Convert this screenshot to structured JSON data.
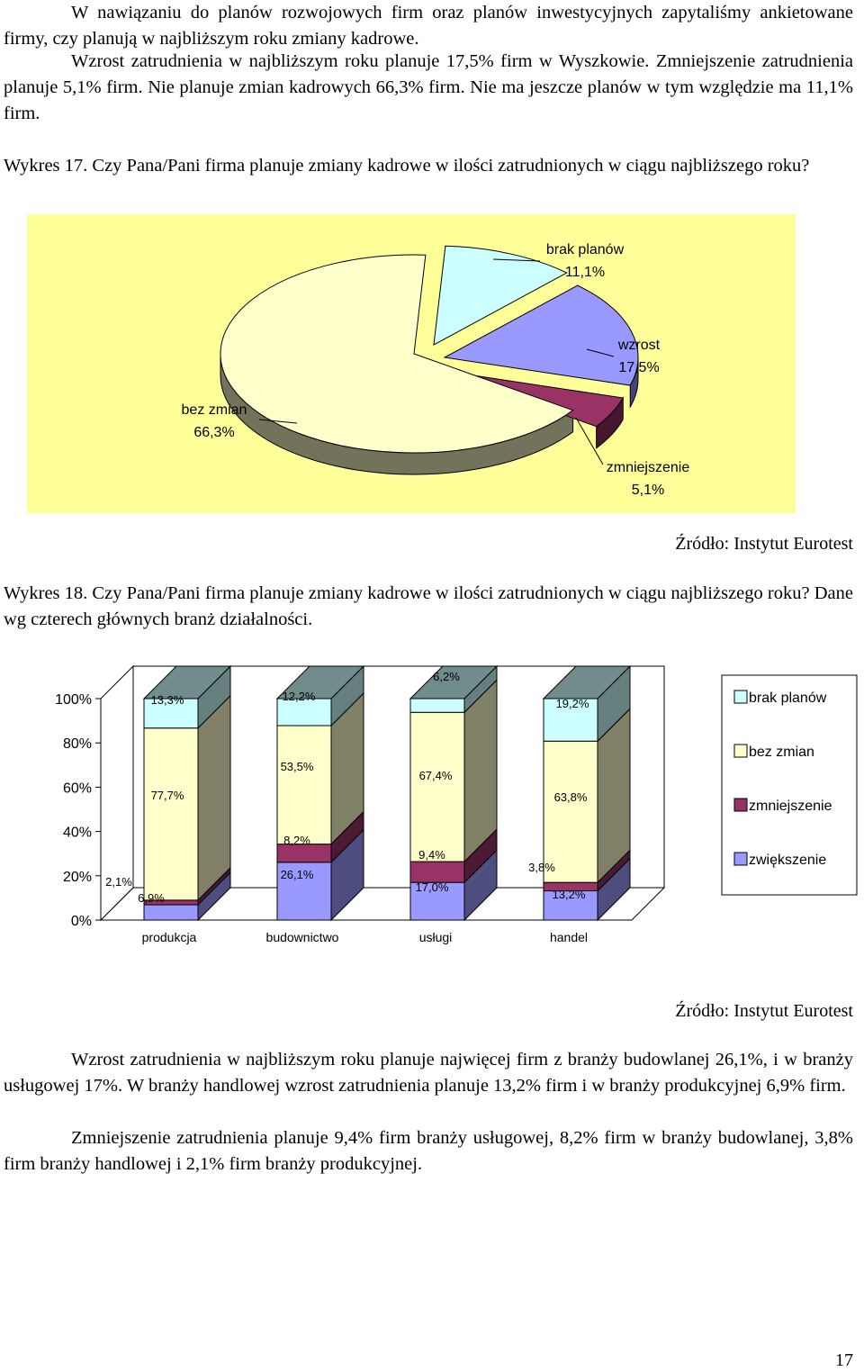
{
  "intro": {
    "paragraphs": [
      "W nawiązaniu do planów rozwojowych firm oraz planów inwestycyjnych zapytaliśmy ankietowane firmy, czy planują w najbliższym roku zmiany kadrowe.",
      "Wzrost zatrudnienia w najbliższym roku planuje 17,5% firm w Wyszkowie. Zmniejszenie zatrudnienia planuje 5,1% firm. Nie planuje zmian kadrowych 66,3% firm. Nie ma jeszcze planów w tym względzie ma 11,1% firm."
    ]
  },
  "figure17": {
    "caption": "Wykres 17. Czy Pana/Pani firma planuje zmiany kadrowe w ilości zatrudnionych w ciągu najbliższego roku?",
    "source": "Źródło: Instytut Eurotest"
  },
  "figure18": {
    "caption": "Wykres 18. Czy Pana/Pani firma planuje zmiany kadrowe w ilości zatrudnionych w ciągu najbliższego roku? Dane wg czterech głównych branż działalności.",
    "source": "Źródło: Instytut Eurotest"
  },
  "chart_data": [
    {
      "type": "pie",
      "slices": [
        {
          "label": "brak planów",
          "value_label": "11,1%",
          "value": 11.1,
          "color": "#ccffff"
        },
        {
          "label": "wzrost",
          "value_label": "17,5%",
          "value": 17.5,
          "color": "#9999ff"
        },
        {
          "label": "zmniejszenie",
          "value_label": "5,1%",
          "value": 5.1,
          "color": "#993366"
        },
        {
          "label": "bez zmian",
          "value_label": "66,3%",
          "value": 66.3,
          "color": "#ffffcc"
        }
      ],
      "background": "#ffff99"
    },
    {
      "type": "bar",
      "stacked": true,
      "categories": [
        "produkcja",
        "budownictwo",
        "usługi",
        "handel"
      ],
      "y_ticks": [
        "0%",
        "20%",
        "40%",
        "60%",
        "80%",
        "100%"
      ],
      "ylim": [
        0,
        100
      ],
      "series": [
        {
          "name": "zwiększenie",
          "color": "#9999ff",
          "values": [
            6.9,
            26.1,
            17.0,
            13.2
          ],
          "labels": [
            "6,9%",
            "26,1%",
            "17,0%",
            "13,2%"
          ]
        },
        {
          "name": "zmniejszenie",
          "color": "#993366",
          "values": [
            2.1,
            8.2,
            9.4,
            3.8
          ],
          "labels": [
            "2,1%",
            "8,2%",
            "9,4%",
            "3,8%"
          ]
        },
        {
          "name": "bez zmian",
          "color": "#ffffcc",
          "values": [
            77.7,
            53.5,
            67.4,
            63.8
          ],
          "labels": [
            "77,7%",
            "53,5%",
            "67,4%",
            "63,8%"
          ]
        },
        {
          "name": "brak planów",
          "color": "#ccffff",
          "values": [
            13.3,
            12.2,
            6.2,
            19.2
          ],
          "labels": [
            "13,3%",
            "12,2%",
            "6,2%",
            "19,2%"
          ]
        }
      ],
      "legend_order": [
        "brak planów",
        "bez zmian",
        "zmniejszenie",
        "zwiększenie"
      ],
      "legend": "right"
    }
  ],
  "conclusion": {
    "paragraphs": [
      "Wzrost zatrudnienia w najbliższym roku planuje najwięcej firm z branży budowlanej 26,1%, i w branży usługowej 17%. W branży handlowej wzrost zatrudnienia planuje 13,2% firm i w branży produkcyjnej 6,9% firm.",
      "Zmniejszenie zatrudnienia planuje 9,4% firm branży usługowej, 8,2% firm w branży budowlanej, 3,8% firm branży handlowej i 2,1% firm branży produkcyjnej."
    ]
  },
  "page_number": "17"
}
